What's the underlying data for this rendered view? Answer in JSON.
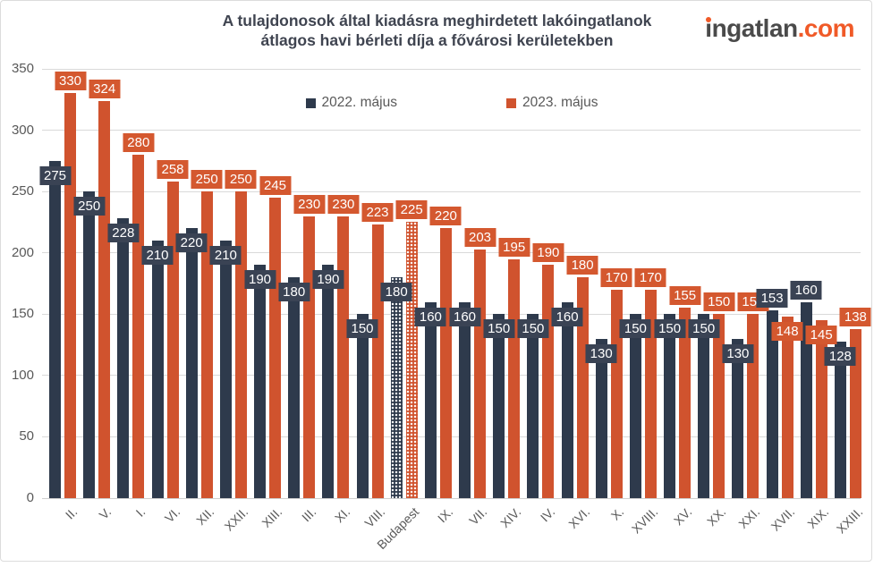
{
  "header": {
    "title_line1": "A tulajdonosok által kiadásra meghirdetett lakóingatlanok",
    "title_line2": "átlagos havi bérleti díja a fővárosi kerületekben",
    "logo": {
      "brand_head": "i",
      "brand_tail": "ngatlan",
      "tld": ".com",
      "accent_color": "#f05a28"
    }
  },
  "legend": [
    {
      "label": "2022. május",
      "color": "#2e3a4c"
    },
    {
      "label": "2023. május",
      "color": "#d0532e"
    }
  ],
  "chart_data": {
    "type": "bar",
    "title": "A tulajdonosok által kiadásra meghirdetett lakóingatlanok átlagos havi bérleti díja a fővárosi kerületekben",
    "categories": [
      "II.",
      "V.",
      "I.",
      "VI.",
      "XII.",
      "XXII.",
      "XIII.",
      "III.",
      "XI.",
      "VIII.",
      "Budapest",
      "IX.",
      "VII.",
      "XIV.",
      "IV.",
      "XVI.",
      "X.",
      "XVIII.",
      "XV.",
      "XX.",
      "XXI.",
      "XVII.",
      "XIX.",
      "XXIII."
    ],
    "series": [
      {
        "name": "2022. május",
        "color": "#2e3a4c",
        "label_box_color": "#3a4354",
        "values": [
          275,
          250,
          228,
          210,
          220,
          210,
          190,
          180,
          190,
          150,
          180,
          160,
          160,
          150,
          150,
          160,
          130,
          150,
          150,
          150,
          130,
          153,
          160,
          128
        ]
      },
      {
        "name": "2023. május",
        "color": "#d0532e",
        "label_box_color": "#d4582f",
        "values": [
          330,
          324,
          280,
          258,
          250,
          250,
          245,
          230,
          230,
          223,
          225,
          220,
          203,
          195,
          190,
          180,
          170,
          170,
          155,
          150,
          150,
          148,
          145,
          138
        ]
      }
    ],
    "pattern_category": "Budapest",
    "ylim": [
      0,
      350
    ],
    "yticks": [
      0,
      50,
      100,
      150,
      200,
      250,
      300,
      350
    ],
    "grid": true,
    "legend_position": "top",
    "x_label_rotation": -45
  }
}
